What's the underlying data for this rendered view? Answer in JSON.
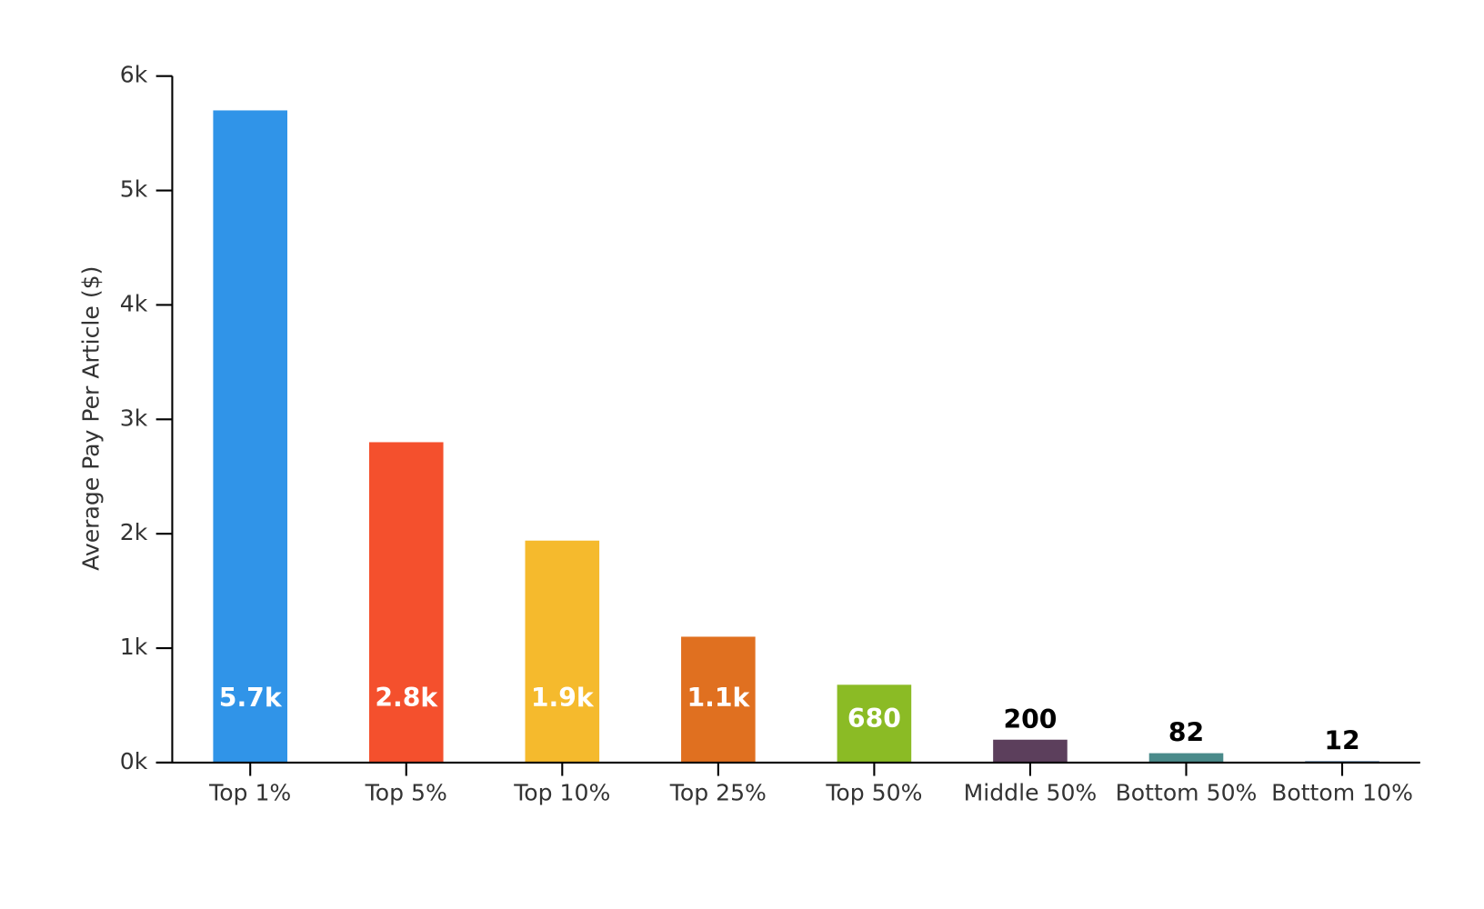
{
  "chart_data": {
    "type": "bar",
    "y_label": "Average Pay Per Article ($)",
    "categories": [
      "Top 1%",
      "Top 5%",
      "Top 10%",
      "Top 25%",
      "Top 50%",
      "Middle 50%",
      "Bottom 50%",
      "Bottom 10%"
    ],
    "values": [
      5700,
      2800,
      1940,
      1100,
      680,
      200,
      82,
      12
    ],
    "value_labels": [
      "5.7k",
      "2.8k",
      "1.9k",
      "1.1k",
      "680",
      "200",
      "82",
      "12"
    ],
    "colors": [
      "#3094e8",
      "#f4502d",
      "#f5ba2d",
      "#e07020",
      "#8bbb25",
      "#5c3f5c",
      "#4a8a8a",
      "#3a6a9a"
    ],
    "ylim": [
      0,
      6000
    ],
    "yticks": [
      {
        "value": 0,
        "label": "0k"
      },
      {
        "value": 1000,
        "label": "1k"
      },
      {
        "value": 2000,
        "label": "2k"
      },
      {
        "value": 3000,
        "label": "3k"
      },
      {
        "value": 4000,
        "label": "4k"
      },
      {
        "value": 5000,
        "label": "5k"
      },
      {
        "value": 6000,
        "label": "6k"
      }
    ]
  }
}
